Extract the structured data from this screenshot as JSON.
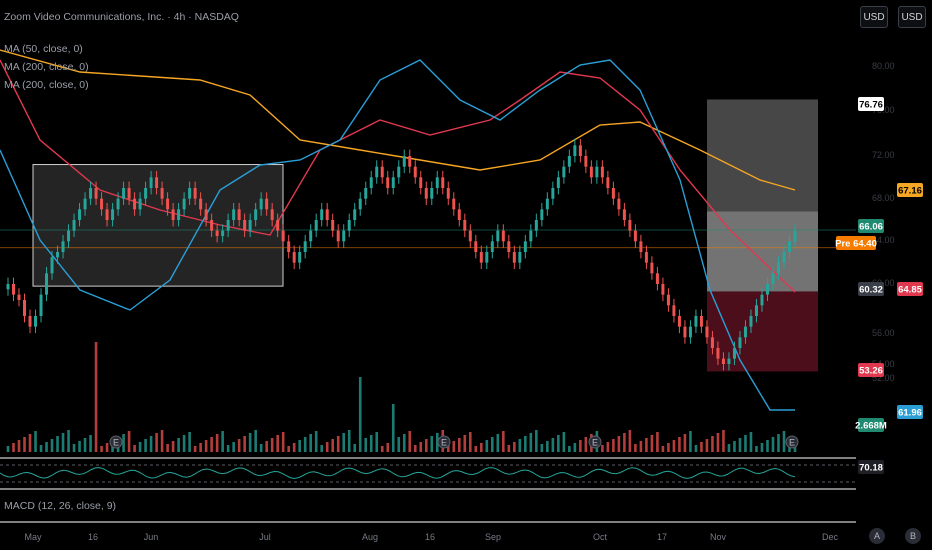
{
  "header": {
    "title": "Zoom Video Communications, Inc. · 4h · NASDAQ",
    "indicators": [
      "MA (50, close, 0)",
      "MA (200, close, 0)",
      "MA (200, close, 0)"
    ]
  },
  "currency_buttons": [
    "USD",
    "USD"
  ],
  "macd_label": "MACD (12, 26, close, 9)",
  "bottom_buttons": [
    "A",
    "B"
  ],
  "colors": {
    "up": "#26a69a",
    "down": "#ef5350",
    "ma_red": "#e0384f",
    "ma_orange": "#f5a623",
    "ma_blue": "#2a9fd6",
    "rsi": "#26a69a",
    "box": "#ffffff",
    "stop": "#5a1020"
  },
  "chart_data": {
    "type": "candlestick",
    "x_tick_labels": [
      "May",
      "16",
      "Jun",
      "Jul",
      "Aug",
      "16",
      "Sep",
      "Oct",
      "17",
      "Nov",
      "Dec"
    ],
    "y_axis_labels": [
      "80.00",
      "76.00",
      "72.00",
      "68.00",
      "64.00",
      "60.00",
      "56.00",
      "54.00",
      "52.00"
    ],
    "price_flags": [
      {
        "label": "76.76",
        "color": "#ffffff",
        "text_color": "#000"
      },
      {
        "label": "67.16",
        "color": "#f5a623",
        "text_color": "#000"
      },
      {
        "label": "66.06",
        "color": "#1f8a70",
        "text_color": "#fff"
      },
      {
        "label": "Pre 64.40",
        "color": "#f57c00",
        "text_color": "#fff"
      },
      {
        "label": "60.32",
        "color": "#3a3e48",
        "text_color": "#fff"
      },
      {
        "label": "64.85",
        "color": "#e0384f",
        "text_color": "#fff"
      },
      {
        "label": "53.26",
        "color": "#e0384f",
        "text_color": "#fff"
      },
      {
        "label": "61.96",
        "color": "#2a9fd6",
        "text_color": "#fff"
      },
      {
        "label": "2.668M",
        "color": "#1f8a70",
        "text_color": "#fff"
      },
      {
        "label": "70.18",
        "color": "#1f2026",
        "text_color": "#fff"
      }
    ],
    "earnings_markers": [
      "E",
      "E",
      "E",
      "E"
    ],
    "close_path": [
      61,
      60,
      59.5,
      58,
      57,
      58,
      60,
      62,
      63.5,
      64,
      65,
      66,
      67,
      68,
      69,
      70,
      69,
      68,
      67,
      68,
      69,
      70,
      69,
      68,
      69,
      70,
      71,
      70,
      69,
      68,
      67,
      68,
      69,
      70,
      69,
      68,
      67,
      66,
      65.5,
      66,
      67,
      68,
      67,
      66,
      67,
      68,
      69,
      68,
      67,
      66,
      65,
      64,
      63,
      64,
      65,
      66,
      67,
      68,
      67,
      66,
      65,
      66,
      67,
      68,
      69,
      70,
      71,
      72,
      71,
      70,
      71,
      72,
      73,
      72,
      71,
      70,
      69,
      70,
      71,
      70,
      69,
      68,
      67,
      66,
      65,
      64,
      63,
      64,
      65,
      66,
      65,
      64,
      63,
      64,
      65,
      66,
      67,
      68,
      69,
      70,
      71,
      72,
      73,
      74,
      73,
      72,
      71,
      72,
      71,
      70,
      69,
      68,
      67,
      66,
      65,
      64,
      63,
      62,
      61,
      60,
      59,
      58,
      57,
      56,
      57,
      58,
      57,
      56,
      55,
      54,
      53.5,
      54,
      55,
      56,
      57,
      58,
      59,
      60,
      61,
      62,
      63,
      64,
      65,
      66
    ]
  }
}
